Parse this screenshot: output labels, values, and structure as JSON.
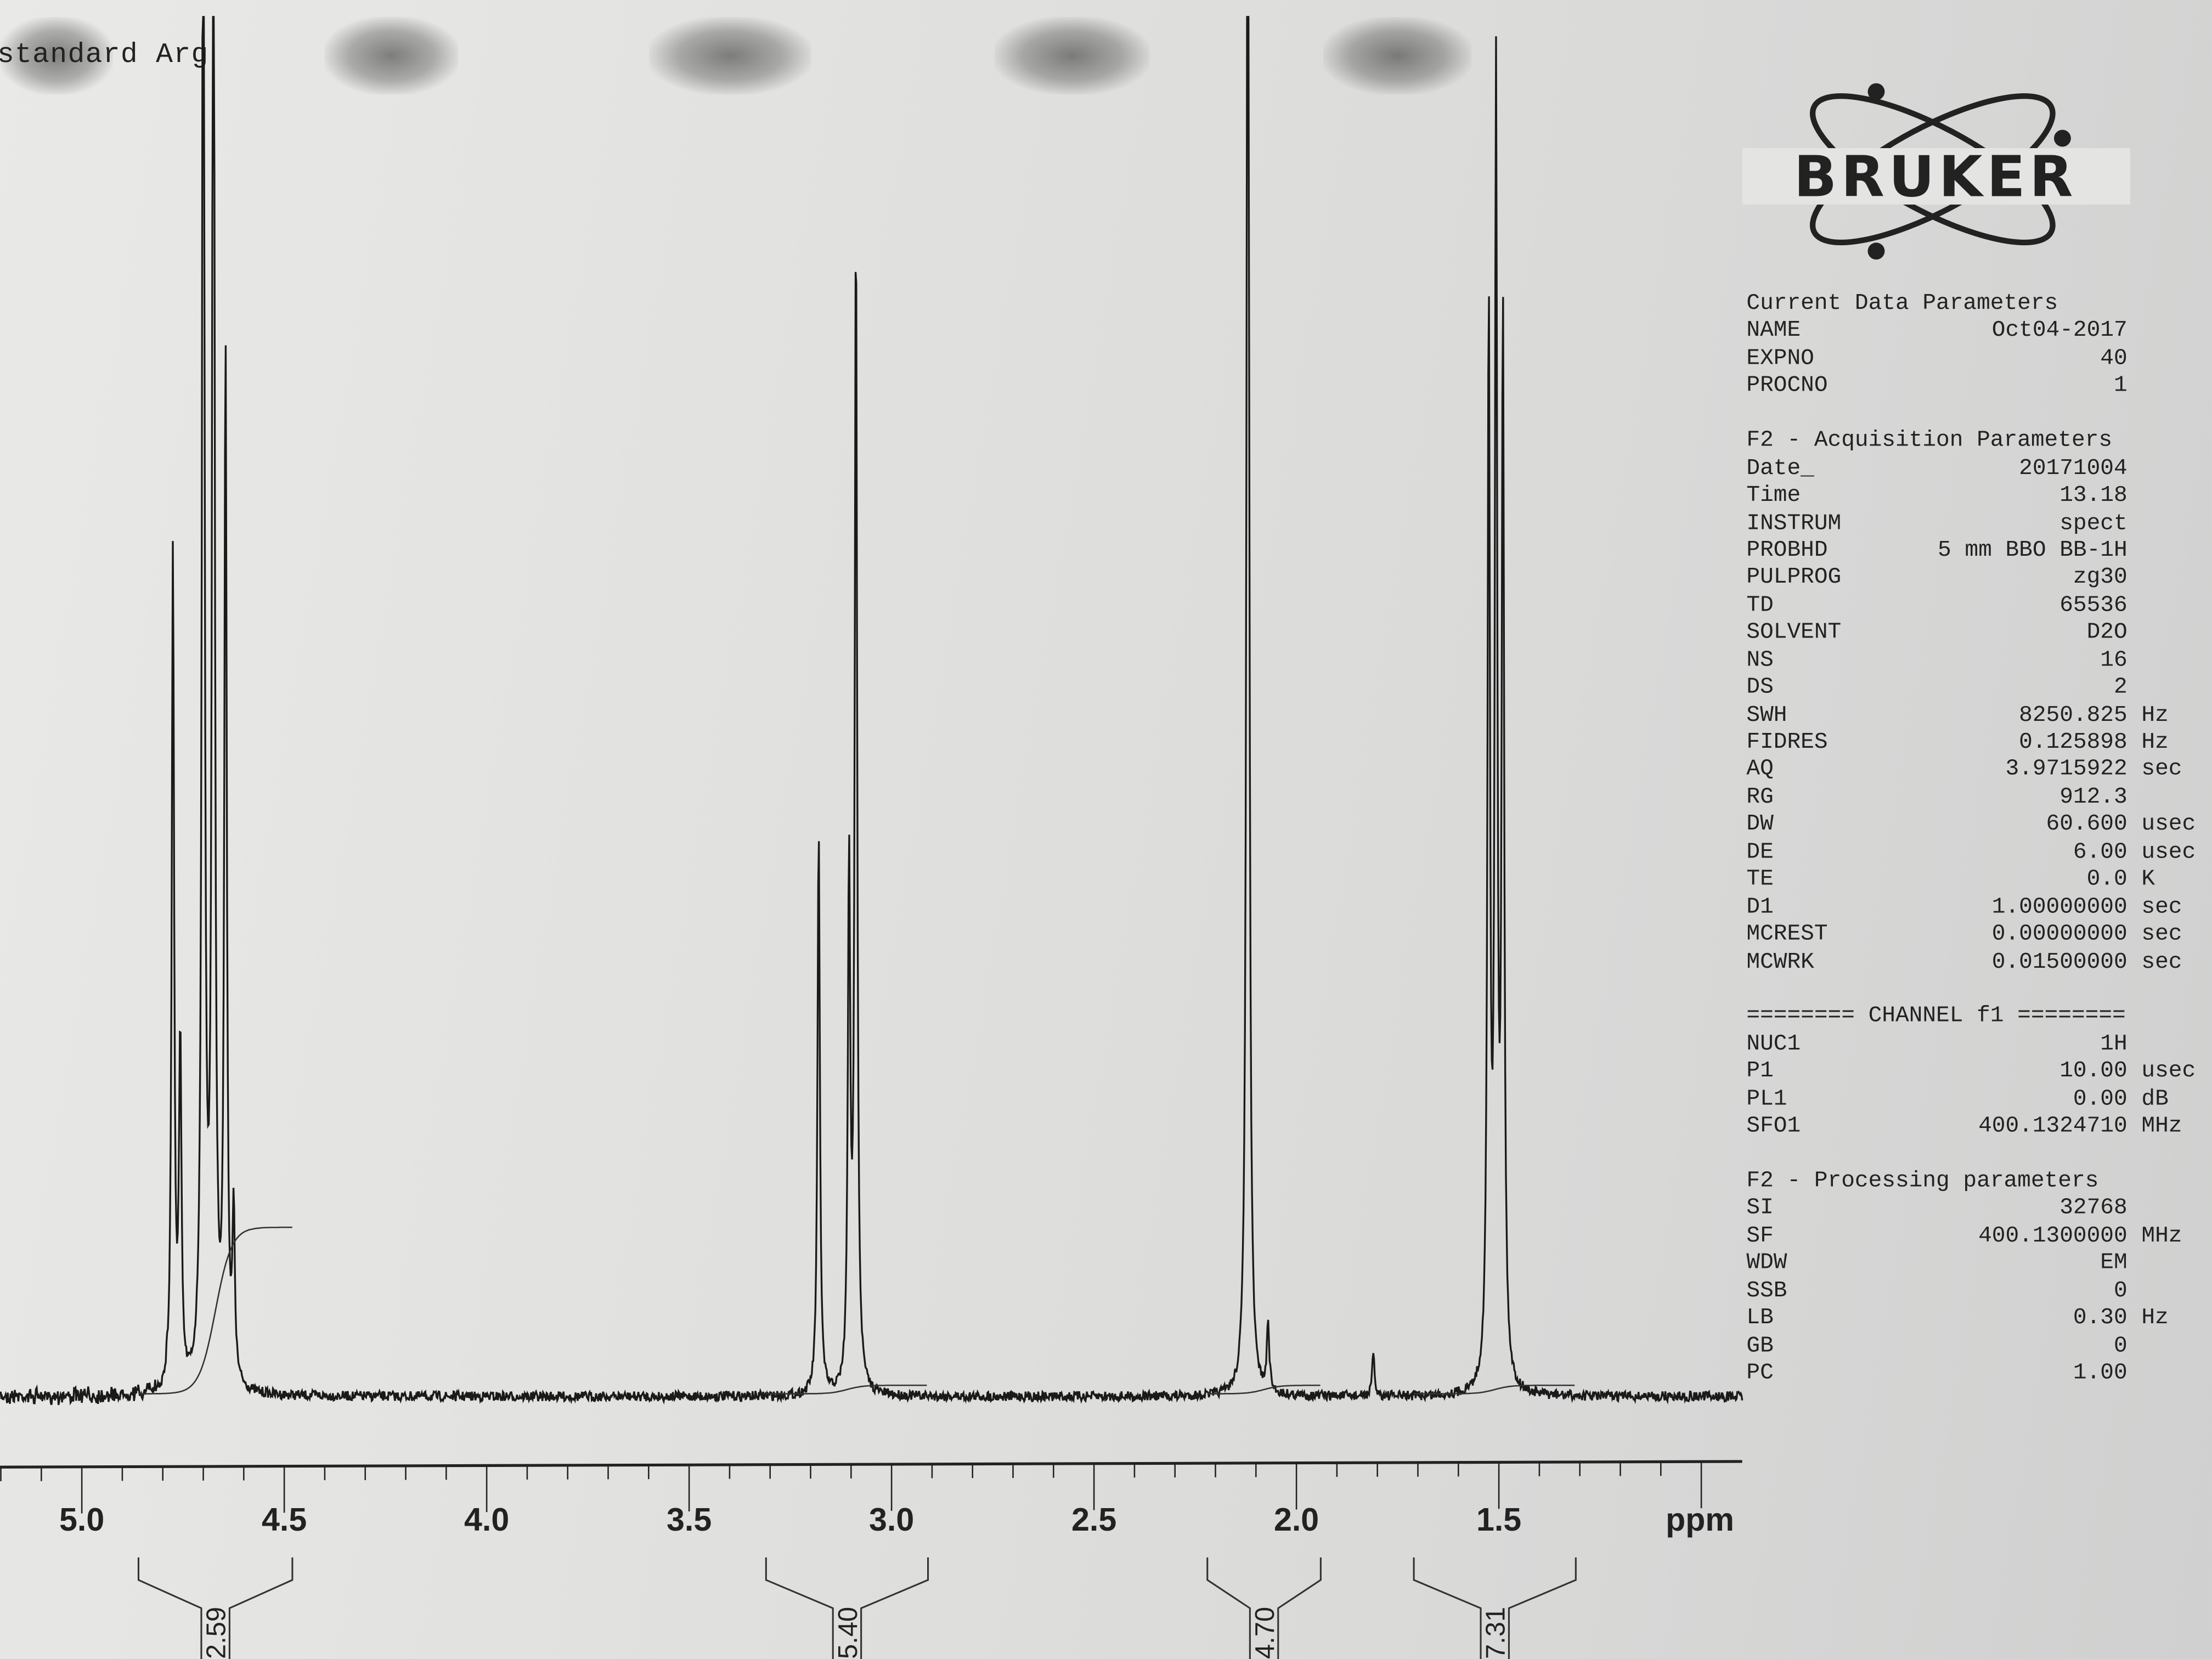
{
  "header": {
    "title": "standard Arg"
  },
  "logo": {
    "text": "BRUKER"
  },
  "parameters": [
    {
      "heading": "Current Data Parameters",
      "rows": [
        {
          "label": "NAME",
          "value": "Oct04-2017",
          "unit": ""
        },
        {
          "label": "EXPNO",
          "value": "40",
          "unit": ""
        },
        {
          "label": "PROCNO",
          "value": "1",
          "unit": ""
        }
      ]
    },
    {
      "heading": "F2 - Acquisition Parameters",
      "rows": [
        {
          "label": "Date_",
          "value": "20171004",
          "unit": ""
        },
        {
          "label": "Time",
          "value": "13.18",
          "unit": ""
        },
        {
          "label": "INSTRUM",
          "value": "spect",
          "unit": ""
        },
        {
          "label": "PROBHD",
          "value": "5 mm BBO BB-1H",
          "unit": ""
        },
        {
          "label": "PULPROG",
          "value": "zg30",
          "unit": ""
        },
        {
          "label": "TD",
          "value": "65536",
          "unit": ""
        },
        {
          "label": "SOLVENT",
          "value": "D2O",
          "unit": ""
        },
        {
          "label": "NS",
          "value": "16",
          "unit": ""
        },
        {
          "label": "DS",
          "value": "2",
          "unit": ""
        },
        {
          "label": "SWH",
          "value": "8250.825",
          "unit": "Hz"
        },
        {
          "label": "FIDRES",
          "value": "0.125898",
          "unit": "Hz"
        },
        {
          "label": "AQ",
          "value": "3.9715922",
          "unit": "sec"
        },
        {
          "label": "RG",
          "value": "912.3",
          "unit": ""
        },
        {
          "label": "DW",
          "value": "60.600",
          "unit": "usec"
        },
        {
          "label": "DE",
          "value": "6.00",
          "unit": "usec"
        },
        {
          "label": "TE",
          "value": "0.0",
          "unit": "K"
        },
        {
          "label": "D1",
          "value": "1.00000000",
          "unit": "sec"
        },
        {
          "label": "MCREST",
          "value": "0.00000000",
          "unit": "sec"
        },
        {
          "label": "MCWRK",
          "value": "0.01500000",
          "unit": "sec"
        }
      ]
    },
    {
      "heading": "======== CHANNEL f1 ========",
      "rows": [
        {
          "label": "NUC1",
          "value": "1H",
          "unit": ""
        },
        {
          "label": "P1",
          "value": "10.00",
          "unit": "usec"
        },
        {
          "label": "PL1",
          "value": "0.00",
          "unit": "dB"
        },
        {
          "label": "SFO1",
          "value": "400.1324710",
          "unit": "MHz"
        }
      ]
    },
    {
      "heading": "F2 - Processing parameters",
      "rows": [
        {
          "label": "SI",
          "value": "32768",
          "unit": ""
        },
        {
          "label": "SF",
          "value": "400.1300000",
          "unit": "MHz"
        },
        {
          "label": "WDW",
          "value": "EM",
          "unit": ""
        },
        {
          "label": "SSB",
          "value": "0",
          "unit": ""
        },
        {
          "label": "LB",
          "value": "0.30",
          "unit": "Hz"
        },
        {
          "label": "GB",
          "value": "0",
          "unit": ""
        },
        {
          "label": "PC",
          "value": "1.00",
          "unit": ""
        }
      ]
    }
  ],
  "chart_data": {
    "type": "line",
    "xlabel": "ppm",
    "xlim": [
      5.2,
      0.9
    ],
    "x_reversed": true,
    "xticks": [
      "5.0",
      "4.5",
      "4.0",
      "3.5",
      "3.0",
      "2.5",
      "2.0",
      "1.5"
    ],
    "xtick_values": [
      5.0,
      4.5,
      4.0,
      3.5,
      3.0,
      2.5,
      2.0,
      1.5
    ],
    "minor_tick_step": 0.1,
    "grid": false,
    "line_color": "#1a1a1a",
    "peaks": [
      {
        "ppm": 4.775,
        "intensity": 0.61
      },
      {
        "ppm": 4.757,
        "intensity": 0.25
      },
      {
        "ppm": 4.7,
        "intensity": 1.3
      },
      {
        "ppm": 4.675,
        "intensity": 1.3
      },
      {
        "ppm": 4.645,
        "intensity": 0.75
      },
      {
        "ppm": 4.625,
        "intensity": 0.12
      },
      {
        "ppm": 3.18,
        "intensity": 0.41
      },
      {
        "ppm": 3.105,
        "intensity": 0.38
      },
      {
        "ppm": 3.088,
        "intensity": 0.85
      },
      {
        "ppm": 2.12,
        "intensity": 1.4
      },
      {
        "ppm": 2.07,
        "intensity": 0.05
      },
      {
        "ppm": 1.81,
        "intensity": 0.03
      },
      {
        "ppm": 1.525,
        "intensity": 0.78
      },
      {
        "ppm": 1.507,
        "intensity": 0.93
      },
      {
        "ppm": 1.49,
        "intensity": 0.77
      }
    ],
    "integrals": [
      {
        "from": 4.86,
        "to": 4.48,
        "value": "2.59"
      },
      {
        "from": 3.31,
        "to": 2.91,
        "value": "5.40"
      },
      {
        "from": 2.22,
        "to": 1.94,
        "value": "4.70"
      },
      {
        "from": 1.71,
        "to": 1.31,
        "value": "7.31"
      }
    ]
  }
}
